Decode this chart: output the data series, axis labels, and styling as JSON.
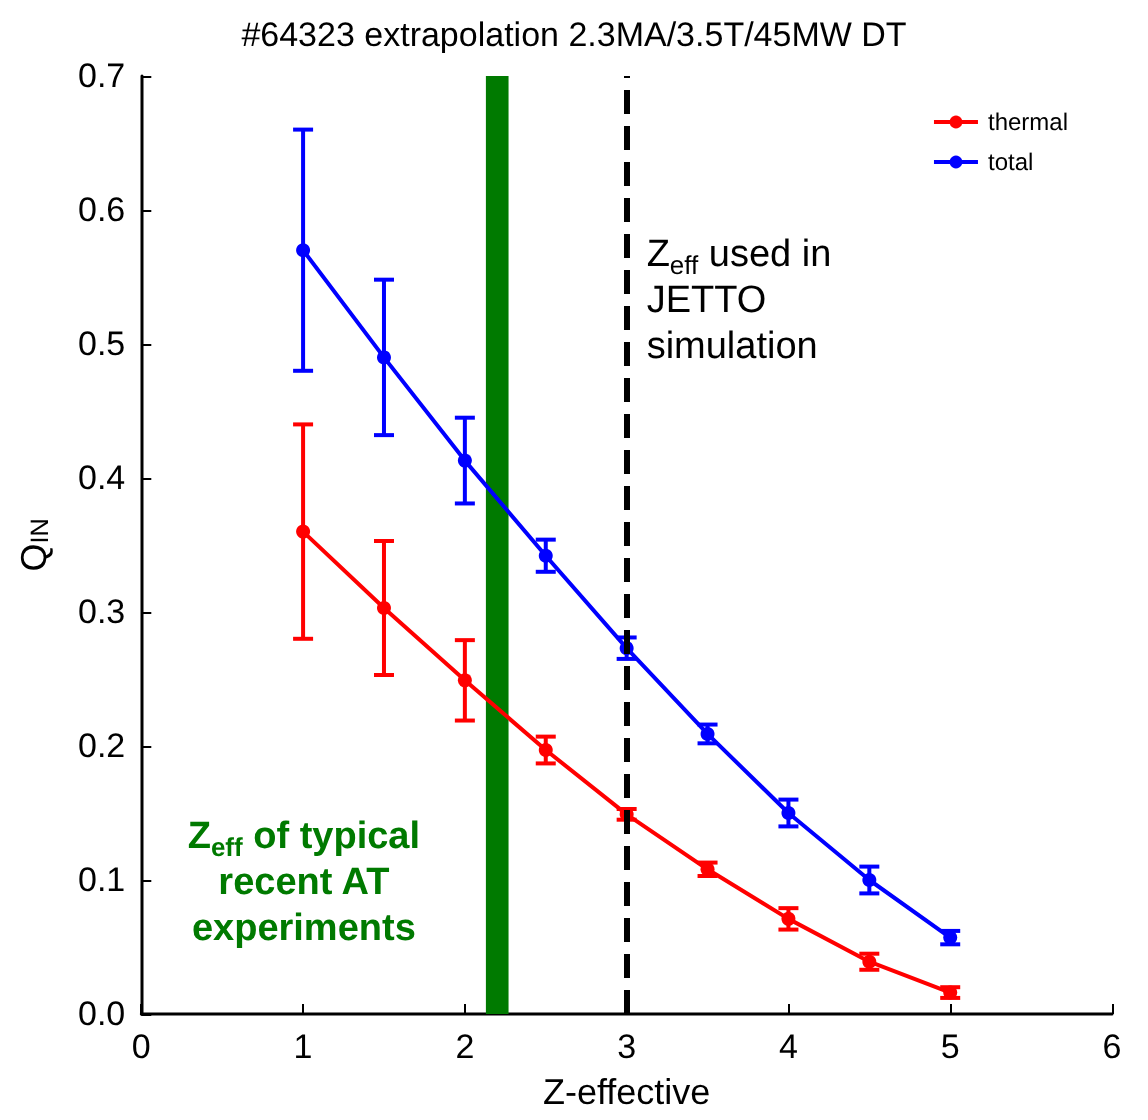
{
  "chart_data": {
    "type": "line",
    "title": "#64323 extrapolation 2.3MA/3.5T/45MW DT",
    "xlabel": "Z-effective",
    "ylabel": "Q$_{IN}$",
    "x": [
      1,
      1.5,
      2,
      2.5,
      3,
      3.5,
      4,
      4.5,
      5
    ],
    "series": [
      {
        "name": "thermal",
        "color": "#ff0000",
        "values": [
          0.36,
          0.303,
          0.249,
          0.197,
          0.149,
          0.108,
          0.071,
          0.039,
          0.016
        ],
        "errors": [
          0.08,
          0.05,
          0.03,
          0.01,
          0.004,
          0.005,
          0.008,
          0.006,
          0.004
        ]
      },
      {
        "name": "total",
        "color": "#0000ff",
        "values": [
          0.57,
          0.49,
          0.413,
          0.342,
          0.273,
          0.209,
          0.15,
          0.1,
          0.057
        ],
        "errors": [
          0.09,
          0.058,
          0.032,
          0.012,
          0.008,
          0.007,
          0.01,
          0.01,
          0.005
        ]
      }
    ],
    "xlim": [
      0,
      6
    ],
    "xticks": [
      0,
      1,
      2,
      3,
      4,
      5,
      6
    ],
    "ylim": [
      0,
      0.7
    ],
    "yticks": [
      {
        "value": 0,
        "label": "0.0"
      },
      0.1,
      0.2,
      0.3,
      0.4,
      0.5,
      0.6,
      0.7
    ],
    "ref_lines": [
      {
        "axis": "x",
        "value": 3,
        "label": "Z$_{eff}$ used in JETTO simulation",
        "color": "#000000",
        "line_style": "dashed"
      }
    ],
    "bands": [
      {
        "axis": "x",
        "from": 2.13,
        "to": 2.27,
        "label": "Z$_{eff}$ of typical recent AT experiments",
        "color": "#007a00"
      }
    ],
    "grid": false,
    "legend": "top right",
    "marker": "circle",
    "line_style": "solid"
  }
}
